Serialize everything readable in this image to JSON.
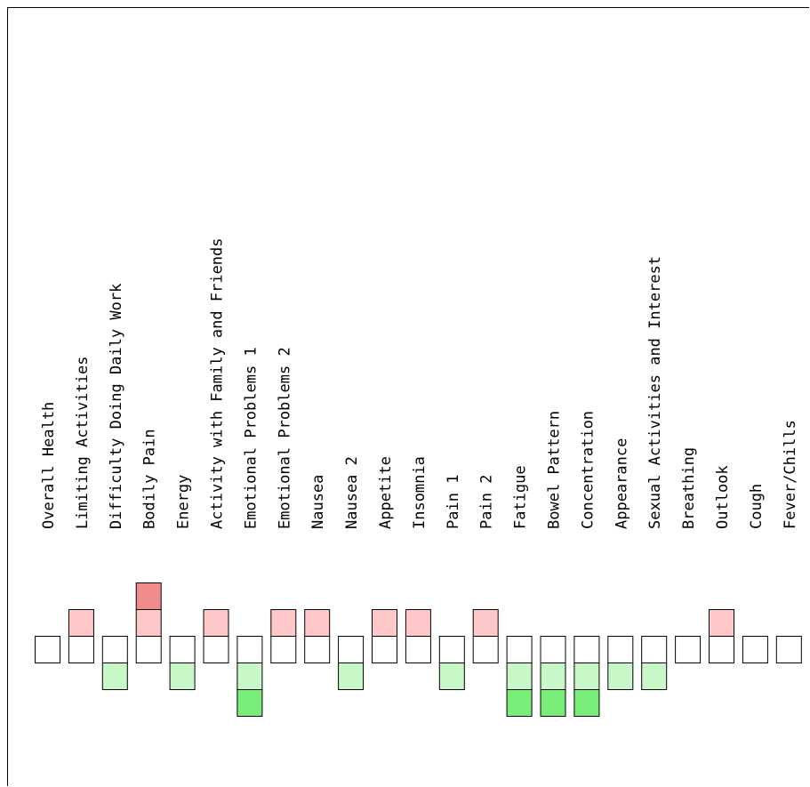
{
  "chart_data": {
    "type": "heatmap",
    "description_of_encoding": "",
    "categories": [
      "Overall Health",
      "Limiting Activities",
      "Difficulty Doing Daily Work",
      "Bodily Pain",
      "Energy",
      "Activity with Family and Friends",
      "Emotional Problems 1",
      "Emotional Problems 2",
      "Nausea",
      "Nausea 2",
      "Appetite",
      "Insomnia",
      "Pain 1",
      "Pain 2",
      "Fatigue",
      "Bowel Pattern",
      "Concentration",
      "Appearance",
      "Sexual Activities and Interest",
      "Breathing",
      "Outlook",
      "Cough",
      "Fever/Chills"
    ],
    "values": [
      0,
      1,
      -1,
      2,
      -1,
      1,
      -2,
      1,
      1,
      -1,
      1,
      1,
      -1,
      1,
      -2,
      -2,
      -2,
      -1,
      -1,
      0,
      1,
      0,
      0
    ],
    "ylim": [
      -2,
      2
    ],
    "colors": {
      "baseline": "#ffffff",
      "worse_1": "#ffc8c8",
      "worse_2": "#f08c8c",
      "better_1": "#c8f8c8",
      "better_2": "#78ee78",
      "outline": "#000000"
    }
  }
}
